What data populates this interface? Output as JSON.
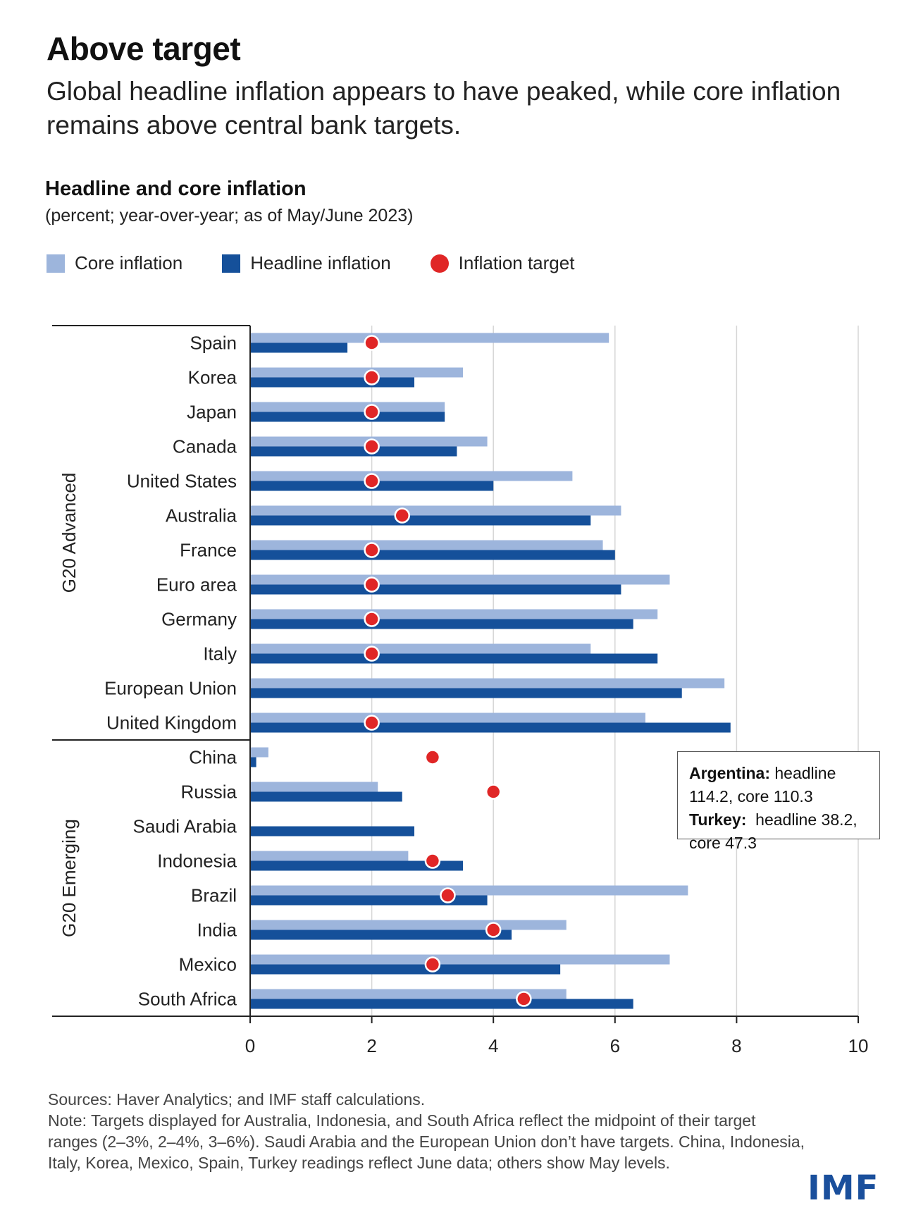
{
  "header": {
    "title": "Above target",
    "subtitle": "Global headline inflation appears to have peaked, while core inflation remains above central bank targets."
  },
  "legend": {
    "core": "Core inflation",
    "headline": "Headline inflation",
    "target": "Inflation target"
  },
  "colors": {
    "core": "#9db5dc",
    "headline": "#15509a",
    "target": "#e02626"
  },
  "annotation": {
    "argentina_label": "Argentina:",
    "argentina_text": " headline 114.2, core 110.3",
    "turkey_label": "Turkey:",
    "turkey_text": "  headline 38.2, core 47.3"
  },
  "footer": {
    "sources": "Sources: Haver Analytics; and IMF staff calculations.",
    "note": "Note: Targets displayed for Australia, Indonesia, and South Africa reflect the midpoint of their target ranges (2–3%, 2–4%, 3–6%). Saudi Arabia and the European Union don’t have targets. China, Indonesia, Italy, Korea, Mexico, Spain, Turkey readings reflect June data; others show May levels."
  },
  "logo": "IMF",
  "chart_data": {
    "type": "bar",
    "orientation": "horizontal",
    "title": "Headline and core inflation",
    "subtitle": "(percent; year-over-year; as of May/June 2023)",
    "xlim": [
      0,
      10
    ],
    "xticks": [
      0,
      2,
      4,
      6,
      8,
      10
    ],
    "grid": true,
    "groups": [
      {
        "name": "G20 Advanced",
        "rows": [
          {
            "country": "Spain",
            "core": 5.9,
            "headline": 1.6,
            "target": 2.0
          },
          {
            "country": "Korea",
            "core": 3.5,
            "headline": 2.7,
            "target": 2.0
          },
          {
            "country": "Japan",
            "core": 3.2,
            "headline": 3.2,
            "target": 2.0
          },
          {
            "country": "Canada",
            "core": 3.9,
            "headline": 3.4,
            "target": 2.0
          },
          {
            "country": "United States",
            "core": 5.3,
            "headline": 4.0,
            "target": 2.0
          },
          {
            "country": "Australia",
            "core": 6.1,
            "headline": 5.6,
            "target": 2.5
          },
          {
            "country": "France",
            "core": 5.8,
            "headline": 6.0,
            "target": 2.0
          },
          {
            "country": "Euro area",
            "core": 6.9,
            "headline": 6.1,
            "target": 2.0
          },
          {
            "country": "Germany",
            "core": 6.7,
            "headline": 6.3,
            "target": 2.0
          },
          {
            "country": "Italy",
            "core": 5.6,
            "headline": 6.7,
            "target": 2.0
          },
          {
            "country": "European Union",
            "core": 7.8,
            "headline": 7.1,
            "target": null
          },
          {
            "country": "United Kingdom",
            "core": 6.5,
            "headline": 7.9,
            "target": 2.0
          }
        ]
      },
      {
        "name": "G20 Emerging",
        "rows": [
          {
            "country": "China",
            "core": 0.3,
            "headline": 0.1,
            "target": 3.0
          },
          {
            "country": "Russia",
            "core": 2.1,
            "headline": 2.5,
            "target": 4.0
          },
          {
            "country": "Saudi Arabia",
            "core": null,
            "headline": 2.7,
            "target": null
          },
          {
            "country": "Indonesia",
            "core": 2.6,
            "headline": 3.5,
            "target": 3.0
          },
          {
            "country": "Brazil",
            "core": 7.2,
            "headline": 3.9,
            "target": 3.25
          },
          {
            "country": "India",
            "core": 5.2,
            "headline": 4.3,
            "target": 4.0
          },
          {
            "country": "Mexico",
            "core": 6.9,
            "headline": 5.1,
            "target": 3.0
          },
          {
            "country": "South Africa",
            "core": 5.2,
            "headline": 6.3,
            "target": 4.5
          }
        ]
      }
    ]
  }
}
